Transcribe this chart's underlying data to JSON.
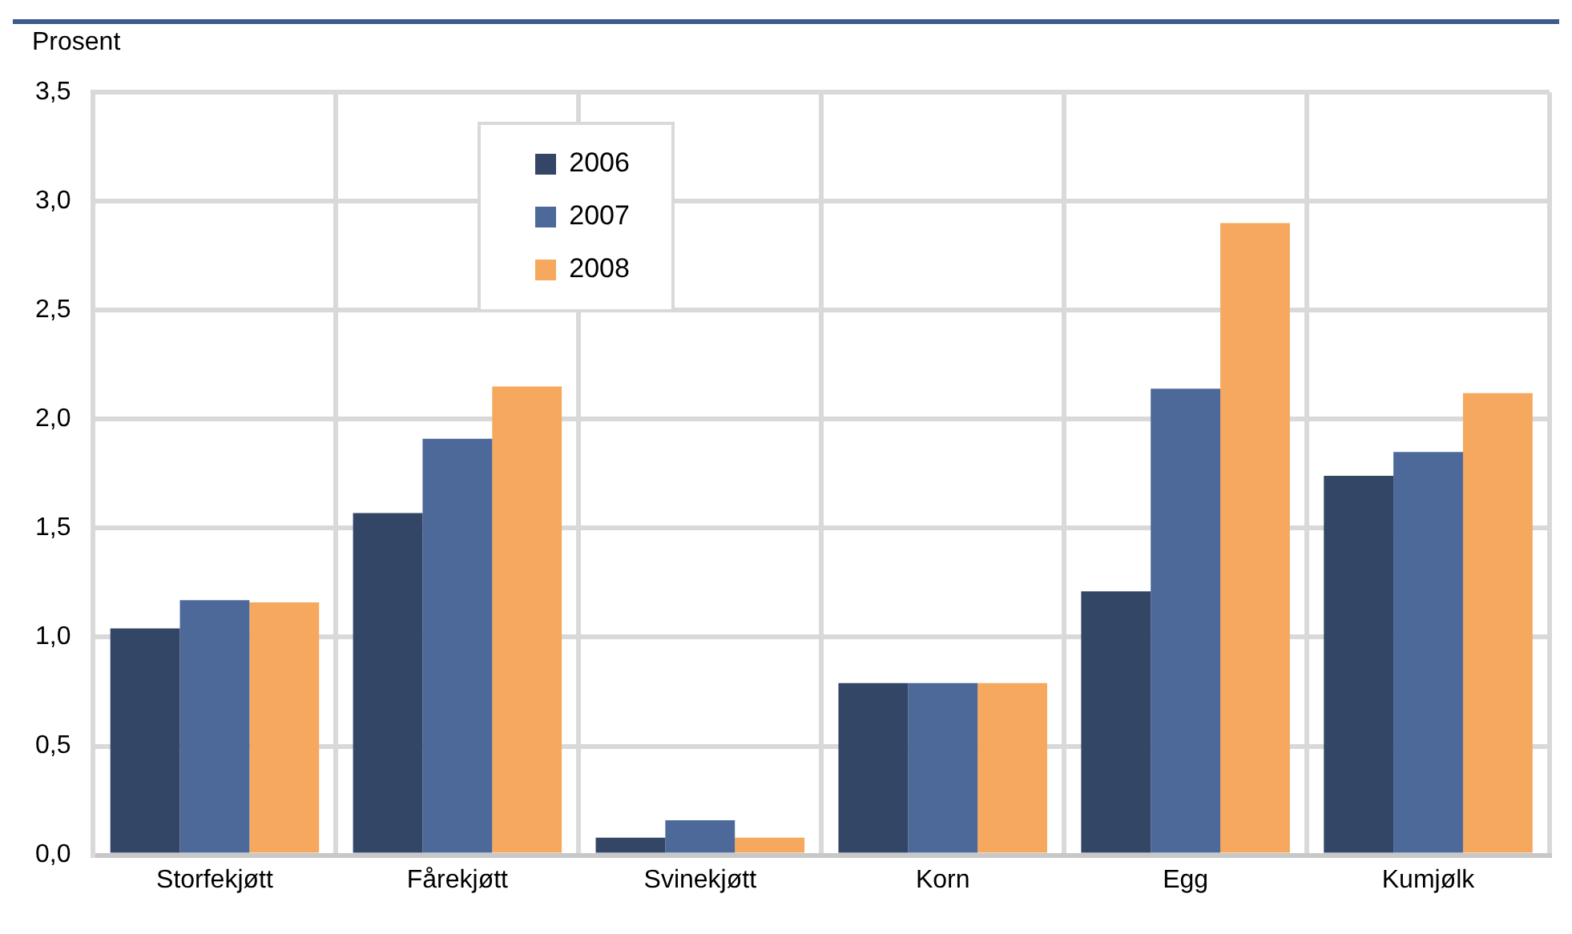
{
  "chart_data": {
    "type": "bar",
    "ylabel": "Prosent",
    "categories": [
      "Storfekjøtt",
      "Fårekjøtt",
      "Svinekjøtt",
      "Korn",
      "Egg",
      "Kumjølk"
    ],
    "series": [
      {
        "name": "2006",
        "color": "#334665",
        "values": [
          1.04,
          1.57,
          0.08,
          0.79,
          1.21,
          1.74
        ]
      },
      {
        "name": "2007",
        "color": "#4c699a",
        "values": [
          1.17,
          1.91,
          0.16,
          0.79,
          2.14,
          1.85
        ]
      },
      {
        "name": "2008",
        "color": "#f5a85e",
        "values": [
          1.16,
          2.15,
          0.08,
          0.79,
          2.9,
          2.12
        ]
      }
    ],
    "ylim": [
      0,
      3.5
    ],
    "yticks": [
      {
        "value": 0,
        "label": "0,0"
      },
      {
        "value": 0.5,
        "label": "0,5"
      },
      {
        "value": 1,
        "label": "1,0"
      },
      {
        "value": 1.5,
        "label": "1,5"
      },
      {
        "value": 2,
        "label": "2,0"
      },
      {
        "value": 2.5,
        "label": "2,5"
      },
      {
        "value": 3,
        "label": "3,0"
      },
      {
        "value": 3.5,
        "label": "3,5"
      }
    ],
    "grid": true,
    "legend": "top"
  }
}
